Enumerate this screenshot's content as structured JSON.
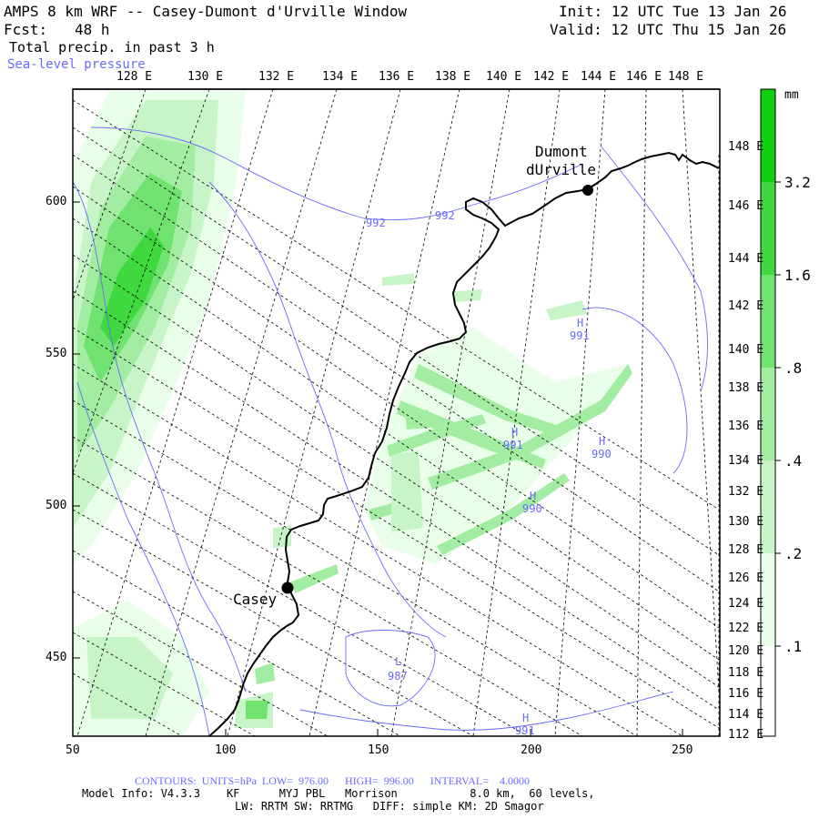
{
  "header": {
    "title": "AMPS 8 km WRF -- Casey-Dumont d'Urville Window",
    "init": "Init: 12 UTC Tue 13 Jan 26",
    "fcst_label": "Fcst:",
    "fcst_value": "48 h",
    "valid": "Valid: 12 UTC Thu 15 Jan 26",
    "field": "Total precip. in past 3 h",
    "overlay": "Sea-level pressure"
  },
  "colors": {
    "frame": "#000000",
    "graticule": "#000000",
    "coast": "#000000",
    "isobar": "#6a6aff",
    "precip_levels": [
      "#ffffff",
      "#eaffea",
      "#c8f5c8",
      "#a2eda2",
      "#6fe26f",
      "#3fd83f",
      "#10cf10"
    ]
  },
  "map": {
    "top_lon_labels": [
      "128 E",
      "130 E",
      "132 E",
      "134 E",
      "136 E",
      "138 E",
      "140 E",
      "142 E",
      "144 E",
      "146 E",
      "148 E"
    ],
    "right_lon_labels": [
      "148 E",
      "146 E",
      "144 E",
      "142 E",
      "140 E",
      "138 E",
      "136 E",
      "134 E",
      "132 E",
      "130 E",
      "128 E",
      "126 E",
      "124 E",
      "122 E",
      "120 E",
      "118 E",
      "116 E",
      "114 E",
      "112 E"
    ],
    "y_ticks": [
      "600",
      "550",
      "500",
      "450"
    ],
    "x_ticks": [
      "50",
      "100",
      "150",
      "200",
      "250"
    ],
    "stations": [
      {
        "name_line1": "Dumont",
        "name_line2": "dUrville"
      },
      {
        "name_line1": "Casey",
        "name_line2": ""
      }
    ],
    "pressure_labels": [
      {
        "letter": "",
        "value": "992"
      },
      {
        "letter": "",
        "value": "992"
      },
      {
        "letter": "H",
        "value": "991"
      },
      {
        "letter": "H",
        "value": "991"
      },
      {
        "letter": "H",
        "value": "990"
      },
      {
        "letter": "H",
        "value": "990"
      },
      {
        "letter": "L",
        "value": "987"
      },
      {
        "letter": "H",
        "value": "991"
      }
    ]
  },
  "colorbar": {
    "units": "mm",
    "labels": [
      "3.2",
      "1.6",
      ".8",
      ".4",
      ".2",
      ".1"
    ]
  },
  "footer": {
    "contours": "CONTOURS:  UNITS=hPa  LOW=  976.00      HIGH=  996.00      INTERVAL=    4.0000",
    "model_line1": "Model Info: V4.3.3    KF      MYJ PBL   Morrison           8.0 km,  60 levels,",
    "model_line2": "LW: RRTM SW: RRTMG   DIFF: simple KM: 2D Smagor"
  }
}
